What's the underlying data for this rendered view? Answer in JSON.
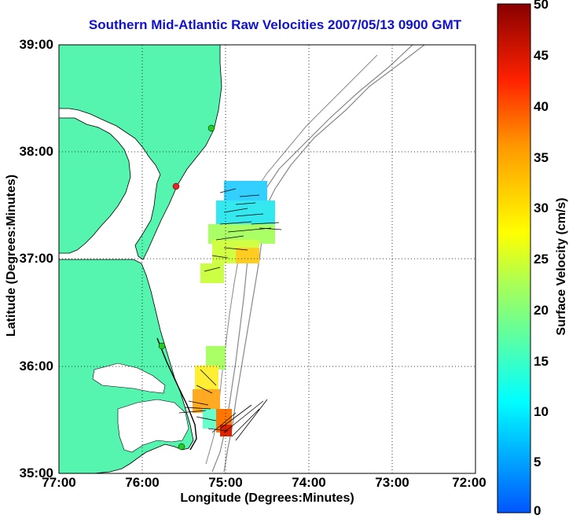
{
  "title": "Southern Mid-Atlantic Raw Velocities 2007/05/13 0900 GMT",
  "x_axis": {
    "label": "Longitude (Degrees:Minutes)",
    "ticks": [
      "77:00",
      "76:00",
      "75:00",
      "74:00",
      "73:00",
      "72:00"
    ]
  },
  "y_axis": {
    "label": "Latitude (Degrees:Minutes)",
    "ticks": [
      "39:00",
      "38:00",
      "37:00",
      "36:00",
      "35:00"
    ]
  },
  "colorbar": {
    "label": "Surface Velocity (cm/s)",
    "ticks": [
      "50",
      "45",
      "40",
      "35",
      "30",
      "25",
      "20",
      "15",
      "10",
      "5",
      "0"
    ],
    "range": [
      0,
      50
    ],
    "colormap": "jet"
  },
  "map_data": {
    "lon_range": [
      -77.0,
      -72.0
    ],
    "lat_range": [
      35.0,
      39.0
    ],
    "land_color": "#55f5b0",
    "grid": "dotted",
    "stations": [
      {
        "lon": -75.15,
        "lat": 38.22,
        "color": "#22cc22"
      },
      {
        "lon": -75.58,
        "lat": 37.65,
        "color": "#ee2222"
      },
      {
        "lon": -75.75,
        "lat": 36.18,
        "color": "#22cc22"
      },
      {
        "lon": -75.53,
        "lat": 35.33,
        "color": "#22cc22"
      }
    ]
  }
}
